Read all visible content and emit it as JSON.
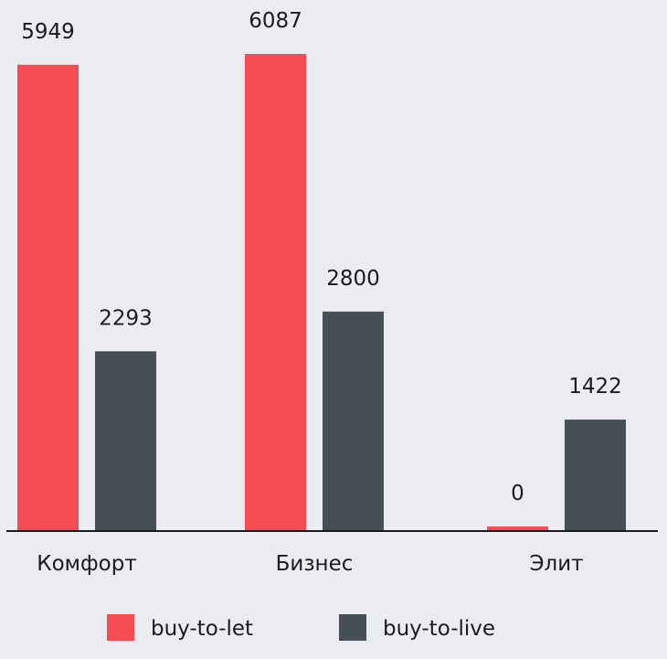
{
  "chart_data": {
    "type": "bar",
    "categories": [
      "Комфорт",
      "Бизнес",
      "Элит"
    ],
    "series": [
      {
        "name": "buy-to-let",
        "values": [
          5949,
          6087,
          0
        ],
        "color": "#f54b52"
      },
      {
        "name": "buy-to-live",
        "values": [
          2293,
          2800,
          1422
        ],
        "color": "#454f55"
      }
    ],
    "value_labels": [
      [
        "5949",
        "6087",
        "0"
      ],
      [
        "2293",
        "2800",
        "1422"
      ]
    ],
    "title": "",
    "xlabel": "",
    "ylabel": "",
    "ylim": [
      0,
      6087
    ],
    "grid": false,
    "legend_position": "bottom"
  }
}
